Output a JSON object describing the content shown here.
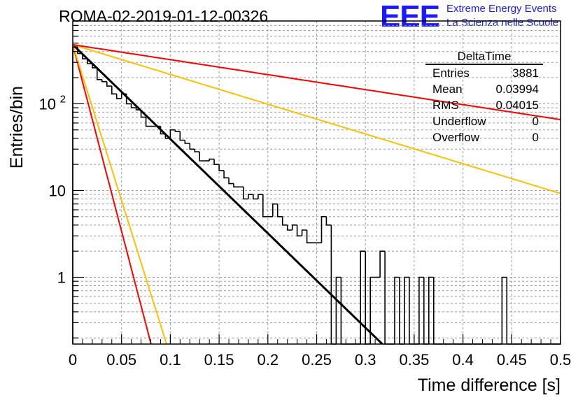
{
  "header": {
    "title": "ROMA-02-2019-01-12-00326"
  },
  "logo": {
    "mark": "EEE",
    "line1": "Extreme Energy Events",
    "line2": "La Scienza nelle Scuole",
    "color": "#1a1aff"
  },
  "stats_box": {
    "title": "DeltaTime",
    "rows": [
      {
        "label": "Entries",
        "value": "3881"
      },
      {
        "label": "Mean",
        "value": "0.03994"
      },
      {
        "label": "RMS",
        "value": "0.04015"
      },
      {
        "label": "Underflow",
        "value": "0"
      },
      {
        "label": "Overflow",
        "value": "0"
      }
    ]
  },
  "chart_data": {
    "type": "line",
    "title": "ROMA-02-2019-01-12-00326",
    "xlabel": "Time difference [s]",
    "ylabel": "Entries/bin",
    "xlim": [
      0,
      0.5
    ],
    "ylim": [
      0.17,
      900
    ],
    "yscale": "log",
    "grid": true,
    "x_ticks": [
      "0",
      "0.05",
      "0.1",
      "0.15",
      "0.2",
      "0.25",
      "0.3",
      "0.35",
      "0.4",
      "0.45",
      "0.5"
    ],
    "y_ticks": [
      {
        "value": 1,
        "label": "1"
      },
      {
        "value": 10,
        "label": "10"
      },
      {
        "value": 100,
        "label": "10",
        "sup": "2"
      }
    ],
    "histogram": {
      "name": "DeltaTime",
      "bin_width": 0.005,
      "color": "#000000",
      "values": [
        450,
        380,
        330,
        290,
        260,
        190,
        180,
        160,
        130,
        115,
        130,
        100,
        90,
        85,
        70,
        55,
        55,
        55,
        45,
        40,
        50,
        48,
        38,
        35,
        30,
        28,
        22,
        22,
        23,
        20,
        17,
        14,
        12,
        11,
        11,
        8,
        9,
        8,
        9,
        5,
        5,
        7,
        5,
        4,
        3.5,
        4,
        3,
        3.5,
        2.5,
        2.5,
        2.5,
        5,
        4,
        0,
        1,
        0,
        0,
        0,
        0,
        2,
        0,
        1,
        1,
        2,
        0,
        0,
        1,
        0,
        1,
        0,
        0,
        1,
        0,
        1,
        0,
        0,
        0,
        0,
        0,
        0,
        0,
        0,
        0,
        0,
        0,
        0,
        0,
        0,
        1,
        0,
        0,
        0,
        0,
        0,
        0,
        0,
        0,
        0,
        0,
        0
      ]
    },
    "series": [
      {
        "type": "fit",
        "color": "#000000",
        "a": 480,
        "tau": 0.03994,
        "x_range": [
          0,
          0.32
        ]
      },
      {
        "type": "limit",
        "color": "#ff0000",
        "a": 480,
        "tau": 0.0101,
        "x_range": [
          0,
          0.5
        ]
      },
      {
        "type": "limit",
        "color": "#ffc000",
        "a": 480,
        "tau": 0.0121,
        "x_range": [
          0,
          0.5
        ]
      },
      {
        "type": "limit",
        "color": "#ffc000",
        "a": 480,
        "tau": 0.1266,
        "x_range": [
          0,
          0.5
        ]
      },
      {
        "type": "limit",
        "color": "#ff0000",
        "a": 480,
        "tau": 0.2514,
        "x_range": [
          0,
          0.5
        ]
      }
    ]
  }
}
